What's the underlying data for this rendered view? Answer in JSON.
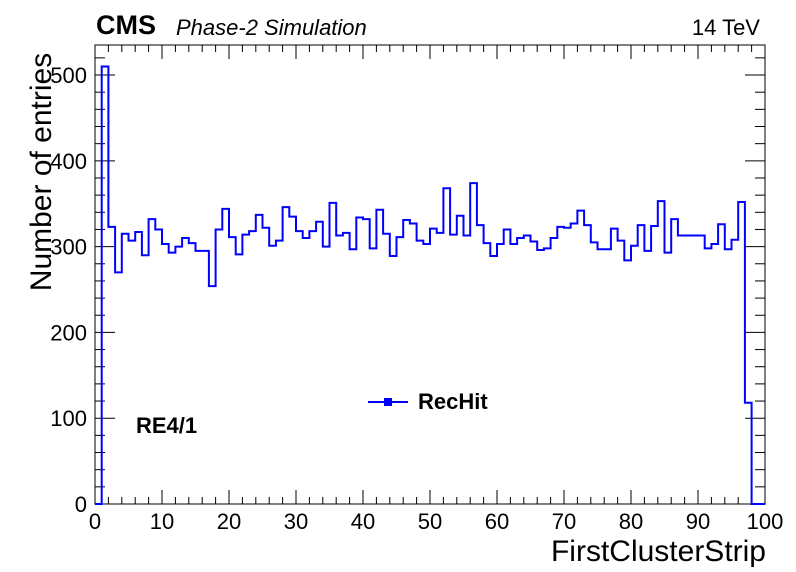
{
  "header": {
    "experiment": "CMS",
    "subtitle": "Phase-2 Simulation",
    "energy": "14 TeV"
  },
  "annotation": "RE4/1",
  "chart_data": {
    "type": "histogram",
    "xlabel": "FirstClusterStrip",
    "ylabel": "Number of entries",
    "xlim": [
      0,
      100
    ],
    "ylim": [
      0,
      535
    ],
    "xticks": [
      0,
      10,
      20,
      30,
      40,
      50,
      60,
      70,
      80,
      90,
      100
    ],
    "yticks": [
      0,
      100,
      200,
      300,
      400,
      500
    ],
    "legend": {
      "position": "center",
      "entries": [
        {
          "name": "RecHit",
          "color": "#0000ff"
        }
      ]
    },
    "series": [
      {
        "name": "RecHit",
        "color": "#0000ff",
        "bins": [
          0,
          1,
          2,
          3,
          4,
          5,
          6,
          7,
          8,
          9,
          10,
          11,
          12,
          13,
          14,
          15,
          16,
          17,
          18,
          19,
          20,
          21,
          22,
          23,
          24,
          25,
          26,
          27,
          28,
          29,
          30,
          31,
          32,
          33,
          34,
          35,
          36,
          37,
          38,
          39,
          40,
          41,
          42,
          43,
          44,
          45,
          46,
          47,
          48,
          49,
          50,
          51,
          52,
          53,
          54,
          55,
          56,
          57,
          58,
          59,
          60,
          61,
          62,
          63,
          64,
          65,
          66,
          67,
          68,
          69,
          70,
          71,
          72,
          73,
          74,
          75,
          76,
          77,
          78,
          79,
          80,
          81,
          82,
          83,
          84,
          85,
          86,
          87,
          88,
          89,
          90,
          91,
          92,
          93,
          94,
          95,
          96,
          97,
          98,
          99,
          100
        ],
        "values": [
          0,
          510,
          323,
          270,
          315,
          307,
          317,
          290,
          332,
          320,
          303,
          293,
          300,
          310,
          304,
          295,
          295,
          254,
          320,
          344,
          311,
          291,
          314,
          318,
          337,
          322,
          301,
          307,
          346,
          335,
          318,
          310,
          318,
          329,
          300,
          351,
          313,
          316,
          297,
          334,
          332,
          298,
          343,
          315,
          289,
          311,
          331,
          327,
          307,
          303,
          321,
          316,
          368,
          314,
          336,
          313,
          374,
          325,
          304,
          289,
          303,
          320,
          303,
          310,
          313,
          306,
          296,
          298,
          310,
          323,
          322,
          327,
          342,
          325,
          305,
          297,
          297,
          321,
          307,
          284,
          301,
          325,
          295,
          324,
          353,
          293,
          332,
          313,
          313,
          313,
          313,
          298,
          303,
          326,
          297,
          308,
          352,
          118,
          0,
          0
        ]
      }
    ]
  }
}
